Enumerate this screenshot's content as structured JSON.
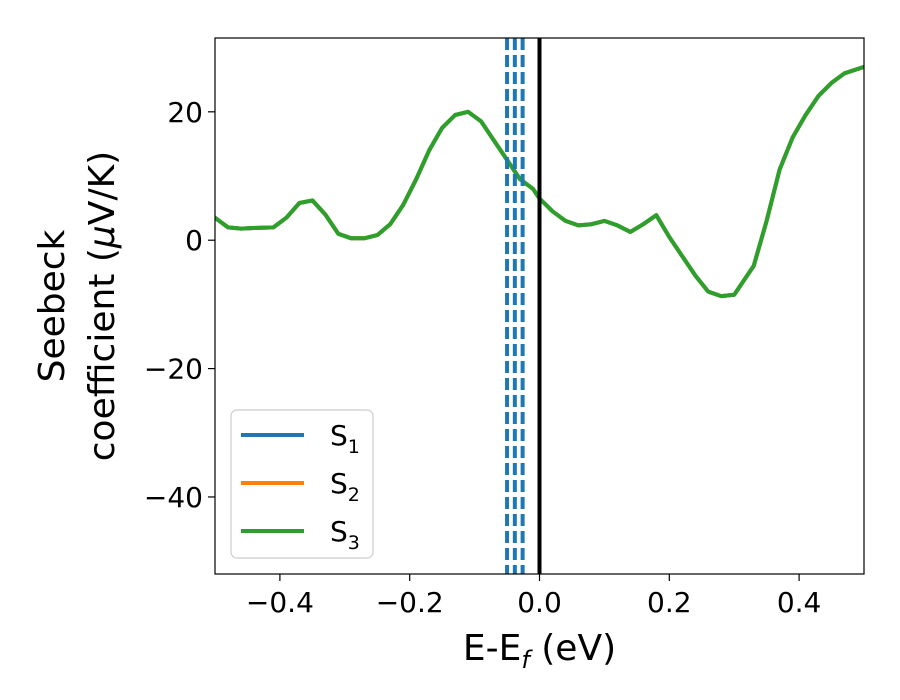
{
  "chart_data": {
    "type": "line",
    "xlabel": {
      "main": "E-E",
      "sub": "f",
      "unit": " (eV)"
    },
    "ylabel": {
      "line1": "Seebeck",
      "line2_text": "coefficient  (",
      "line2_mu": "μ",
      "line2_unit": "V/K)"
    },
    "xlim": [
      -0.5,
      0.5
    ],
    "ylim": [
      -52,
      31.5
    ],
    "xticks": [
      -0.4,
      -0.2,
      0.0,
      0.2,
      0.4
    ],
    "xtick_labels": [
      "−0.4",
      "−0.2",
      "0.0",
      "0.2",
      "0.4"
    ],
    "yticks": [
      20,
      0,
      -20,
      -40
    ],
    "ytick_labels": [
      "20",
      "0",
      "−20",
      "−40"
    ],
    "grid": false,
    "legend_placement": "lower-left",
    "series": [
      {
        "name": "S",
        "sub": "1",
        "color": "#1f77b4",
        "x": [
          -0.5,
          -0.48,
          -0.46,
          -0.44,
          -0.41,
          -0.39,
          -0.37,
          -0.35,
          -0.33,
          -0.31,
          -0.29,
          -0.27,
          -0.25,
          -0.23,
          -0.21,
          -0.19,
          -0.17,
          -0.15,
          -0.13,
          -0.11,
          -0.09,
          -0.07,
          -0.05,
          -0.03,
          -0.01,
          0.0,
          0.02,
          0.04,
          0.06,
          0.08,
          0.1,
          0.12,
          0.14,
          0.16,
          0.18,
          0.2,
          0.22,
          0.24,
          0.26,
          0.28,
          0.3,
          0.33,
          0.35,
          0.37,
          0.39,
          0.41,
          0.43,
          0.45,
          0.47,
          0.5
        ],
        "y": [
          3.5,
          2.0,
          1.8,
          1.9,
          2.0,
          3.5,
          5.8,
          6.2,
          4.0,
          1.0,
          0.3,
          0.3,
          0.8,
          2.5,
          5.5,
          9.5,
          14.0,
          17.5,
          19.5,
          20.0,
          18.5,
          15.5,
          12.5,
          9.5,
          8.0,
          6.5,
          4.5,
          3.0,
          2.3,
          2.5,
          3.0,
          2.3,
          1.3,
          2.5,
          3.9,
          0.5,
          -2.5,
          -5.5,
          -8.0,
          -8.7,
          -8.5,
          -4.0,
          3.0,
          11.0,
          16.0,
          19.5,
          22.5,
          24.5,
          26.0,
          27.0
        ]
      },
      {
        "name": "S",
        "sub": "2",
        "color": "#ff7f0e",
        "x": [
          -0.5,
          -0.48,
          -0.46,
          -0.44,
          -0.41,
          -0.39,
          -0.37,
          -0.35,
          -0.33,
          -0.31,
          -0.29,
          -0.27,
          -0.25,
          -0.23,
          -0.21,
          -0.19,
          -0.17,
          -0.15,
          -0.13,
          -0.11,
          -0.09,
          -0.07,
          -0.05,
          -0.03,
          -0.01,
          0.0,
          0.02,
          0.04,
          0.06,
          0.08,
          0.1,
          0.12,
          0.14,
          0.16,
          0.18,
          0.2,
          0.22,
          0.24,
          0.26,
          0.28,
          0.3,
          0.33,
          0.35,
          0.37,
          0.39,
          0.41,
          0.43,
          0.45,
          0.47,
          0.5
        ],
        "y": [
          3.5,
          2.0,
          1.8,
          1.9,
          2.0,
          3.5,
          5.8,
          6.2,
          4.0,
          1.0,
          0.3,
          0.3,
          0.8,
          2.5,
          5.5,
          9.5,
          14.0,
          17.5,
          19.5,
          20.0,
          18.5,
          15.5,
          12.5,
          9.5,
          8.0,
          6.5,
          4.5,
          3.0,
          2.3,
          2.5,
          3.0,
          2.3,
          1.3,
          2.5,
          3.9,
          0.5,
          -2.5,
          -5.5,
          -8.0,
          -8.7,
          -8.5,
          -4.0,
          3.0,
          11.0,
          16.0,
          19.5,
          22.5,
          24.5,
          26.0,
          27.0
        ]
      },
      {
        "name": "S",
        "sub": "3",
        "color": "#2ca02c",
        "x": [
          -0.5,
          -0.48,
          -0.46,
          -0.44,
          -0.41,
          -0.39,
          -0.37,
          -0.35,
          -0.33,
          -0.31,
          -0.29,
          -0.27,
          -0.25,
          -0.23,
          -0.21,
          -0.19,
          -0.17,
          -0.15,
          -0.13,
          -0.11,
          -0.09,
          -0.07,
          -0.05,
          -0.03,
          -0.01,
          0.0,
          0.02,
          0.04,
          0.06,
          0.08,
          0.1,
          0.12,
          0.14,
          0.16,
          0.18,
          0.2,
          0.22,
          0.24,
          0.26,
          0.28,
          0.3,
          0.33,
          0.35,
          0.37,
          0.39,
          0.41,
          0.43,
          0.45,
          0.47,
          0.5
        ],
        "y": [
          3.5,
          2.0,
          1.8,
          1.9,
          2.0,
          3.5,
          5.8,
          6.2,
          4.0,
          1.0,
          0.3,
          0.3,
          0.8,
          2.5,
          5.5,
          9.5,
          14.0,
          17.5,
          19.5,
          20.0,
          18.5,
          15.5,
          12.5,
          9.5,
          8.0,
          6.5,
          4.5,
          3.0,
          2.3,
          2.5,
          3.0,
          2.3,
          1.3,
          2.5,
          3.9,
          0.5,
          -2.5,
          -5.5,
          -8.0,
          -8.7,
          -8.5,
          -4.0,
          3.0,
          11.0,
          16.0,
          19.5,
          22.5,
          24.5,
          26.0,
          27.0
        ]
      }
    ],
    "vlines": [
      {
        "x": -0.05,
        "style": "dashed",
        "color": "#1f77b4"
      },
      {
        "x": -0.038,
        "style": "dashed",
        "color": "#1f77b4"
      },
      {
        "x": -0.026,
        "style": "dashed",
        "color": "#1f77b4"
      },
      {
        "x": 0.0,
        "style": "solid",
        "color": "#000000"
      }
    ]
  }
}
